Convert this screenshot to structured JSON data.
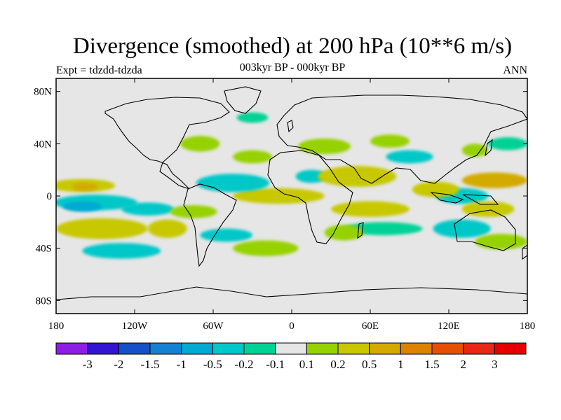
{
  "title": "Divergence (smoothed) at 200 hPa (10**6 m/s)",
  "subtitle": "003kyr BP - 000kyr BP",
  "left_label": "Expt = tdzdd-tdzda",
  "right_label": "ANN",
  "colors": {
    "ocean_background": "#e6e6e6",
    "coastline": "#000000"
  },
  "chart_data": {
    "type": "heatmap",
    "title": "Divergence (smoothed) at 200 hPa (10**6 m/s)",
    "projection": "cylindrical-equidistant",
    "lon_range": [
      -180,
      180
    ],
    "lat_range": [
      -90,
      90
    ],
    "x_ticks": [
      {
        "value": -180,
        "label": "180"
      },
      {
        "value": -120,
        "label": "120W"
      },
      {
        "value": -60,
        "label": "60W"
      },
      {
        "value": 0,
        "label": "0"
      },
      {
        "value": 60,
        "label": "60E"
      },
      {
        "value": 120,
        "label": "120E"
      },
      {
        "value": 180,
        "label": "180"
      }
    ],
    "y_ticks": [
      {
        "value": 80,
        "label": "80N"
      },
      {
        "value": 40,
        "label": "40N"
      },
      {
        "value": 0,
        "label": "0"
      },
      {
        "value": -40,
        "label": "40S"
      },
      {
        "value": -80,
        "label": "80S"
      }
    ],
    "colorbar": {
      "levels": [
        "-3",
        "-2",
        "-1.5",
        "-1",
        "-0.5",
        "-0.2",
        "-0.1",
        "0.1",
        "0.2",
        "0.5",
        "1",
        "1.5",
        "2",
        "3"
      ],
      "colors": [
        "#8c1ee6",
        "#3214d2",
        "#1450c8",
        "#1482d2",
        "#00aad2",
        "#00c8c8",
        "#00d296",
        "#e6e6e6",
        "#96d200",
        "#c8c800",
        "#d2aa00",
        "#dc8200",
        "#e65000",
        "#e62814",
        "#e60000"
      ]
    },
    "regions": [
      {
        "value": 0.3,
        "class": 9,
        "lon": -160,
        "lat": 8,
        "rx": 25,
        "ry": 5
      },
      {
        "value": 0.8,
        "class": 10,
        "lon": -158,
        "lat": 7,
        "rx": 10,
        "ry": 3
      },
      {
        "value": -0.35,
        "class": 5,
        "lon": -150,
        "lat": -5,
        "rx": 32,
        "ry": 6
      },
      {
        "value": -0.6,
        "class": 4,
        "lon": -160,
        "lat": -8,
        "rx": 15,
        "ry": 4
      },
      {
        "value": 0.3,
        "class": 9,
        "lon": -145,
        "lat": -25,
        "rx": 35,
        "ry": 8
      },
      {
        "value": -0.3,
        "class": 5,
        "lon": -110,
        "lat": -10,
        "rx": 20,
        "ry": 5
      },
      {
        "value": 0.3,
        "class": 9,
        "lon": -95,
        "lat": -25,
        "rx": 15,
        "ry": 7
      },
      {
        "value": -0.3,
        "class": 5,
        "lon": -130,
        "lat": -42,
        "rx": 30,
        "ry": 6
      },
      {
        "value": 0.15,
        "class": 8,
        "lon": -75,
        "lat": -12,
        "rx": 18,
        "ry": 5
      },
      {
        "value": 0.3,
        "class": 9,
        "lon": -10,
        "lat": 0,
        "rx": 35,
        "ry": 6
      },
      {
        "value": -0.3,
        "class": 5,
        "lon": -45,
        "lat": 10,
        "rx": 28,
        "ry": 7
      },
      {
        "value": 0.15,
        "class": 8,
        "lon": -30,
        "lat": 30,
        "rx": 15,
        "ry": 5
      },
      {
        "value": -0.3,
        "class": 5,
        "lon": -50,
        "lat": -30,
        "rx": 20,
        "ry": 5
      },
      {
        "value": 0.15,
        "class": 8,
        "lon": -20,
        "lat": -40,
        "rx": 25,
        "ry": 6
      },
      {
        "value": 0.15,
        "class": 8,
        "lon": -70,
        "lat": 40,
        "rx": 15,
        "ry": 6
      },
      {
        "value": -0.15,
        "class": 6,
        "lon": -30,
        "lat": 60,
        "rx": 12,
        "ry": 4
      },
      {
        "value": 0.15,
        "class": 8,
        "lon": 25,
        "lat": 38,
        "rx": 20,
        "ry": 6
      },
      {
        "value": -0.3,
        "class": 5,
        "lon": 15,
        "lat": 15,
        "rx": 12,
        "ry": 5
      },
      {
        "value": 0.3,
        "class": 9,
        "lon": 50,
        "lat": 15,
        "rx": 30,
        "ry": 8
      },
      {
        "value": 0.3,
        "class": 9,
        "lon": 60,
        "lat": -10,
        "rx": 30,
        "ry": 6
      },
      {
        "value": -0.15,
        "class": 6,
        "lon": 70,
        "lat": -25,
        "rx": 30,
        "ry": 5
      },
      {
        "value": 0.15,
        "class": 8,
        "lon": 40,
        "lat": -28,
        "rx": 15,
        "ry": 6
      },
      {
        "value": -0.3,
        "class": 5,
        "lon": 90,
        "lat": 30,
        "rx": 18,
        "ry": 5
      },
      {
        "value": 0.15,
        "class": 8,
        "lon": 75,
        "lat": 42,
        "rx": 15,
        "ry": 5
      },
      {
        "value": -0.3,
        "class": 5,
        "lon": 130,
        "lat": 0,
        "rx": 20,
        "ry": 6
      },
      {
        "value": 0.8,
        "class": 10,
        "lon": 155,
        "lat": 12,
        "rx": 25,
        "ry": 6
      },
      {
        "value": 0.3,
        "class": 9,
        "lon": 110,
        "lat": 5,
        "rx": 18,
        "ry": 6
      },
      {
        "value": 0.3,
        "class": 9,
        "lon": 150,
        "lat": -10,
        "rx": 20,
        "ry": 6
      },
      {
        "value": -0.3,
        "class": 5,
        "lon": 130,
        "lat": -25,
        "rx": 22,
        "ry": 7
      },
      {
        "value": 0.15,
        "class": 8,
        "lon": 160,
        "lat": -35,
        "rx": 20,
        "ry": 6
      },
      {
        "value": -0.15,
        "class": 6,
        "lon": 165,
        "lat": 40,
        "rx": 15,
        "ry": 5
      },
      {
        "value": 0.15,
        "class": 8,
        "lon": 140,
        "lat": 35,
        "rx": 10,
        "ry": 5
      }
    ]
  }
}
